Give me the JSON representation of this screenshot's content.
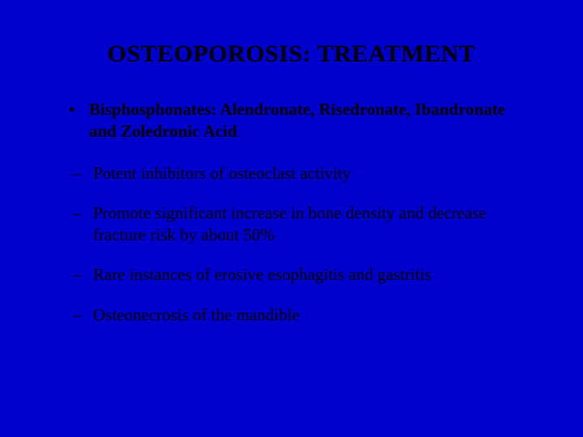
{
  "slide": {
    "title": "OSTEOPOROSIS: TREATMENT",
    "bullet": "Bisphosphonates:  Alendronate, Risedronate, Ibandronate and Zoledronic Acid",
    "subitems": [
      "Potent inhibitors of osteoclast activity",
      "Promote significant increase in bone density and decrease fracture risk by about 50%",
      "Rare instances of erosive esophagitis and gastritis",
      "Osteonecrosis of the mandible"
    ],
    "colors": {
      "background": "#0000cc",
      "text": "#000000"
    },
    "typography": {
      "font_family": "Times New Roman",
      "title_fontsize": 30,
      "title_weight": "bold",
      "bullet_fontsize": 21,
      "bullet_weight": "bold",
      "subitem_fontsize": 21,
      "subitem_weight": "normal"
    }
  }
}
